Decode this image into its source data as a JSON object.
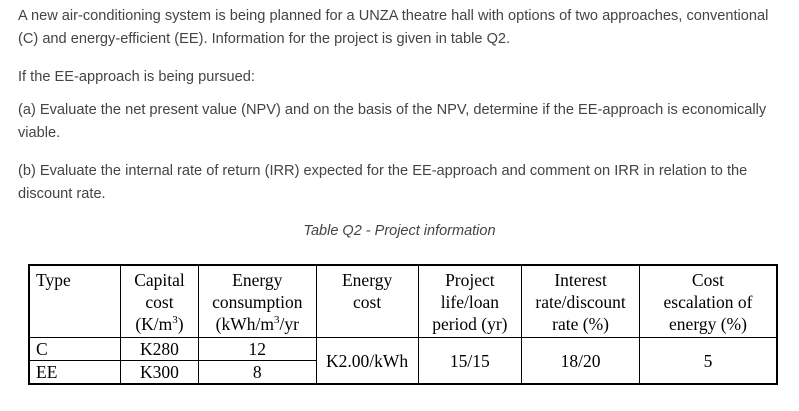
{
  "question": {
    "intro": "A new air-conditioning system is being planned for a UNZA theatre hall with options of two approaches, conventional (C) and energy-efficient (EE). Information for the project is given in table Q2.",
    "condition": "If the EE-approach is being pursued:",
    "part_a": "(a) Evaluate the net present value (NPV) and on the basis of the NPV, determine if the EE-approach is economically viable.",
    "part_b": "(b) Evaluate the internal rate of return (IRR) expected for the EE-approach and comment on IRR in relation to the discount rate."
  },
  "table": {
    "caption": "Table Q2 - Project information",
    "headers": {
      "type": "Type",
      "capital_cost": [
        "Capital",
        "cost",
        "(K/m",
        "3",
        ")"
      ],
      "energy_consumption": [
        "Energy",
        "consumption",
        "(kWh/m",
        "3",
        "/yr"
      ],
      "energy_cost": [
        "Energy",
        "cost"
      ],
      "project_life": [
        "Project",
        "life/loan",
        "period (yr)"
      ],
      "interest_rate": [
        "Interest",
        "rate/discount",
        "rate (%)"
      ],
      "cost_escalation": [
        "Cost",
        "escalation of",
        "energy (%)"
      ]
    },
    "rows": [
      {
        "type": "C",
        "capital_cost": "K280",
        "energy_consumption": "12"
      },
      {
        "type": "EE",
        "capital_cost": "K300",
        "energy_consumption": "8"
      }
    ],
    "shared": {
      "energy_cost": "K2.00/kWh",
      "project_life": "15/15",
      "interest_rate": "18/20",
      "cost_escalation": "5"
    }
  }
}
